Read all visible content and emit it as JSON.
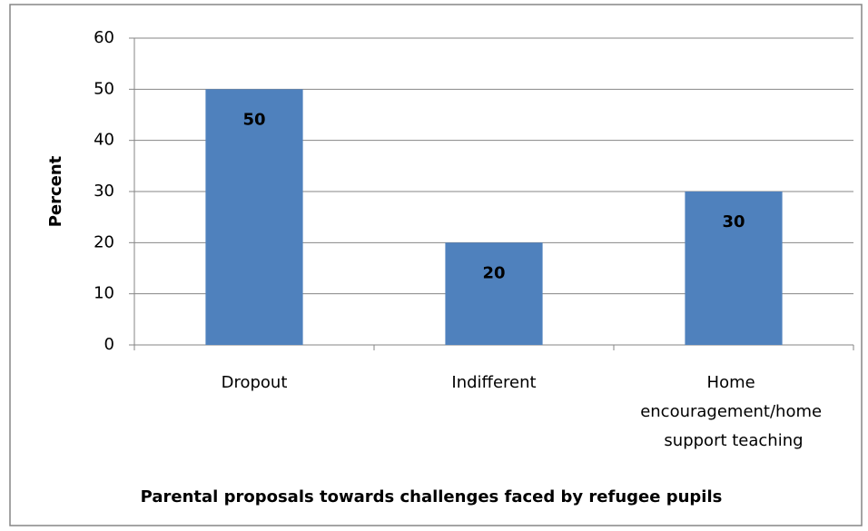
{
  "chart_data": {
    "type": "bar",
    "categories": [
      "Dropout",
      "Indifferent",
      "Home encouragement/home support teaching"
    ],
    "values": [
      50,
      20,
      30
    ],
    "color": "#4f81bd",
    "ylabel": "Percent",
    "xlabel": "Parental proposals towards challenges faced by refugee pupils",
    "ylim": [
      0,
      60
    ],
    "yticks": [
      0,
      10,
      20,
      30,
      40,
      50,
      60
    ],
    "grid": true
  }
}
